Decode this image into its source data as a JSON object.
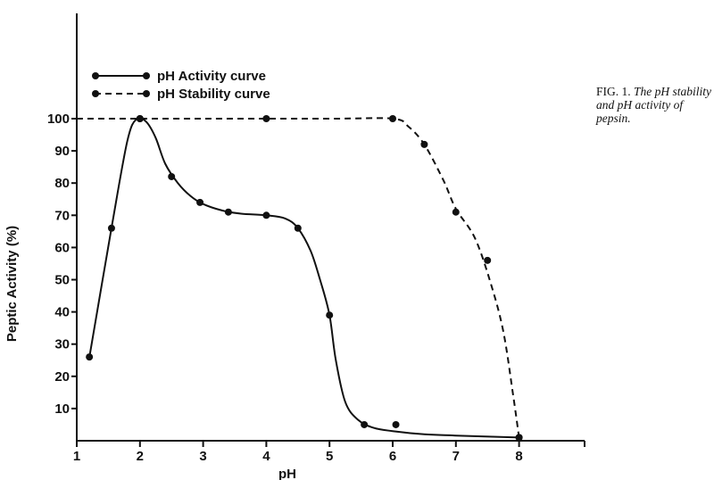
{
  "chart_data": {
    "type": "line",
    "xlabel": "pH",
    "ylabel": "Peptic Activity (%)",
    "xlim": [
      1,
      9
    ],
    "ylim": [
      0,
      120
    ],
    "x_ticks": [
      "1",
      "2",
      "3",
      "4",
      "5",
      "6",
      "7",
      "8"
    ],
    "y_ticks": [
      "10",
      "20",
      "30",
      "40",
      "50",
      "60",
      "70",
      "80",
      "90",
      "100"
    ],
    "legend_position": "top-left",
    "series": [
      {
        "name": "pH Activity curve",
        "style": "solid",
        "points": [
          {
            "x": 1.2,
            "y": 26
          },
          {
            "x": 1.55,
            "y": 66
          },
          {
            "x": 2.0,
            "y": 100
          },
          {
            "x": 2.5,
            "y": 82
          },
          {
            "x": 2.95,
            "y": 74
          },
          {
            "x": 3.4,
            "y": 71
          },
          {
            "x": 4.0,
            "y": 70
          },
          {
            "x": 4.5,
            "y": 66
          },
          {
            "x": 5.0,
            "y": 39
          },
          {
            "x": 5.55,
            "y": 5
          },
          {
            "x": 6.05,
            "y": 5
          },
          {
            "x": 8.0,
            "y": 1
          }
        ],
        "curve": [
          [
            1.2,
            26
          ],
          [
            1.55,
            66
          ],
          [
            1.8,
            93
          ],
          [
            1.95,
            100
          ],
          [
            2.1,
            99
          ],
          [
            2.25,
            94
          ],
          [
            2.4,
            86
          ],
          [
            2.6,
            80
          ],
          [
            2.8,
            76
          ],
          [
            3.0,
            73.5
          ],
          [
            3.3,
            71.5
          ],
          [
            3.6,
            70.5
          ],
          [
            4.0,
            70
          ],
          [
            4.3,
            69
          ],
          [
            4.5,
            66
          ],
          [
            4.7,
            59
          ],
          [
            4.85,
            50
          ],
          [
            5.0,
            39
          ],
          [
            5.1,
            25
          ],
          [
            5.25,
            12
          ],
          [
            5.45,
            6.5
          ],
          [
            5.7,
            4
          ],
          [
            6.0,
            3
          ],
          [
            6.5,
            2
          ],
          [
            7.0,
            1.6
          ],
          [
            8.0,
            1
          ]
        ]
      },
      {
        "name": "pH Stability curve",
        "style": "dashed",
        "points": [
          {
            "x": 2.0,
            "y": 100
          },
          {
            "x": 4.0,
            "y": 100
          },
          {
            "x": 6.0,
            "y": 100
          },
          {
            "x": 6.5,
            "y": 92
          },
          {
            "x": 7.0,
            "y": 71
          },
          {
            "x": 7.5,
            "y": 56
          },
          {
            "x": 8.0,
            "y": 1
          }
        ],
        "curve": [
          [
            1.0,
            100
          ],
          [
            3.0,
            100
          ],
          [
            5.0,
            100
          ],
          [
            6.0,
            100
          ],
          [
            6.25,
            97.5
          ],
          [
            6.5,
            92
          ],
          [
            6.8,
            81
          ],
          [
            7.0,
            72
          ],
          [
            7.3,
            63
          ],
          [
            7.55,
            49
          ],
          [
            7.75,
            34
          ],
          [
            7.9,
            15
          ],
          [
            8.0,
            1
          ]
        ]
      }
    ]
  },
  "caption": {
    "label": "FIG. 1.",
    "text": "The pH stability and pH activity of pepsin."
  }
}
